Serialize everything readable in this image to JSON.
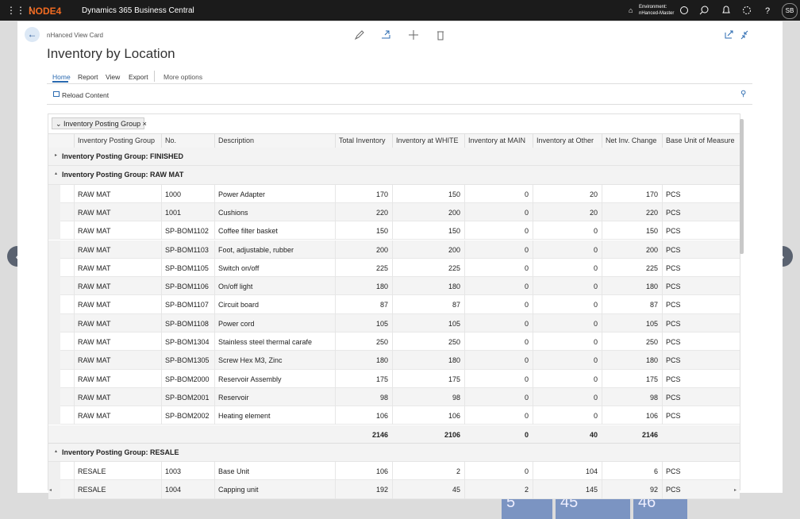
{
  "topbar": {
    "brand": "NODE4",
    "app": "Dynamics 365 Business Central",
    "environment_label": "Environment:",
    "environment": "nHanced-Master",
    "user": "SB"
  },
  "card": {
    "caption": "nHanced View Card",
    "title": "Inventory by Location",
    "tabs": [
      "Home",
      "Report",
      "View",
      "Export"
    ],
    "more": "More options",
    "action": "Reload Content"
  },
  "grid": {
    "group_chip": "Inventory Posting Group",
    "columns": [
      "Inventory Posting Group",
      "No.",
      "Description",
      "Total Inventory",
      "Inventory at WHITE",
      "Inventory at MAIN",
      "Inventory at Other",
      "Net Inv. Change",
      "Base Unit of Measure"
    ],
    "groups": [
      {
        "label": "Inventory Posting Group: FINISHED",
        "rows": []
      },
      {
        "label": "Inventory Posting Group: RAW MAT",
        "rows": [
          [
            "RAW MAT",
            "1000",
            "Power Adapter",
            170,
            150,
            0,
            20,
            170,
            "PCS"
          ],
          [
            "RAW MAT",
            "1001",
            "Cushions",
            220,
            200,
            0,
            20,
            220,
            "PCS"
          ],
          [
            "RAW MAT",
            "SP-BOM1102",
            "Coffee filter basket",
            150,
            150,
            0,
            0,
            150,
            "PCS"
          ],
          [
            "RAW MAT",
            "SP-BOM1103",
            "Foot, adjustable, rubber",
            200,
            200,
            0,
            0,
            200,
            "PCS"
          ],
          [
            "RAW MAT",
            "SP-BOM1105",
            "Switch on/off",
            225,
            225,
            0,
            0,
            225,
            "PCS"
          ],
          [
            "RAW MAT",
            "SP-BOM1106",
            "On/off light",
            180,
            180,
            0,
            0,
            180,
            "PCS"
          ],
          [
            "RAW MAT",
            "SP-BOM1107",
            "Circuit board",
            87,
            87,
            0,
            0,
            87,
            "PCS"
          ],
          [
            "RAW MAT",
            "SP-BOM1108",
            "Power cord",
            105,
            105,
            0,
            0,
            105,
            "PCS"
          ],
          [
            "RAW MAT",
            "SP-BOM1304",
            "Stainless steel thermal carafe",
            250,
            250,
            0,
            0,
            250,
            "PCS"
          ],
          [
            "RAW MAT",
            "SP-BOM1305",
            "Screw Hex M3, Zinc",
            180,
            180,
            0,
            0,
            180,
            "PCS"
          ],
          [
            "RAW MAT",
            "SP-BOM2000",
            "Reservoir Assembly",
            175,
            175,
            0,
            0,
            175,
            "PCS"
          ],
          [
            "RAW MAT",
            "SP-BOM2001",
            "Reservoir",
            98,
            98,
            0,
            0,
            98,
            "PCS"
          ],
          [
            "RAW MAT",
            "SP-BOM2002",
            "Heating element",
            106,
            106,
            0,
            0,
            106,
            "PCS"
          ]
        ],
        "totals": [
          2146,
          2106,
          0,
          40,
          2146
        ]
      },
      {
        "label": "Inventory Posting Group: RESALE",
        "rows": [
          [
            "RESALE",
            "1003",
            "Base Unit",
            106,
            2,
            0,
            104,
            6,
            "PCS"
          ],
          [
            "RESALE",
            "1004",
            "Capping unit",
            192,
            45,
            2,
            145,
            92,
            "PCS"
          ]
        ]
      }
    ]
  },
  "background_tiles": [
    "5",
    "45",
    "46"
  ]
}
